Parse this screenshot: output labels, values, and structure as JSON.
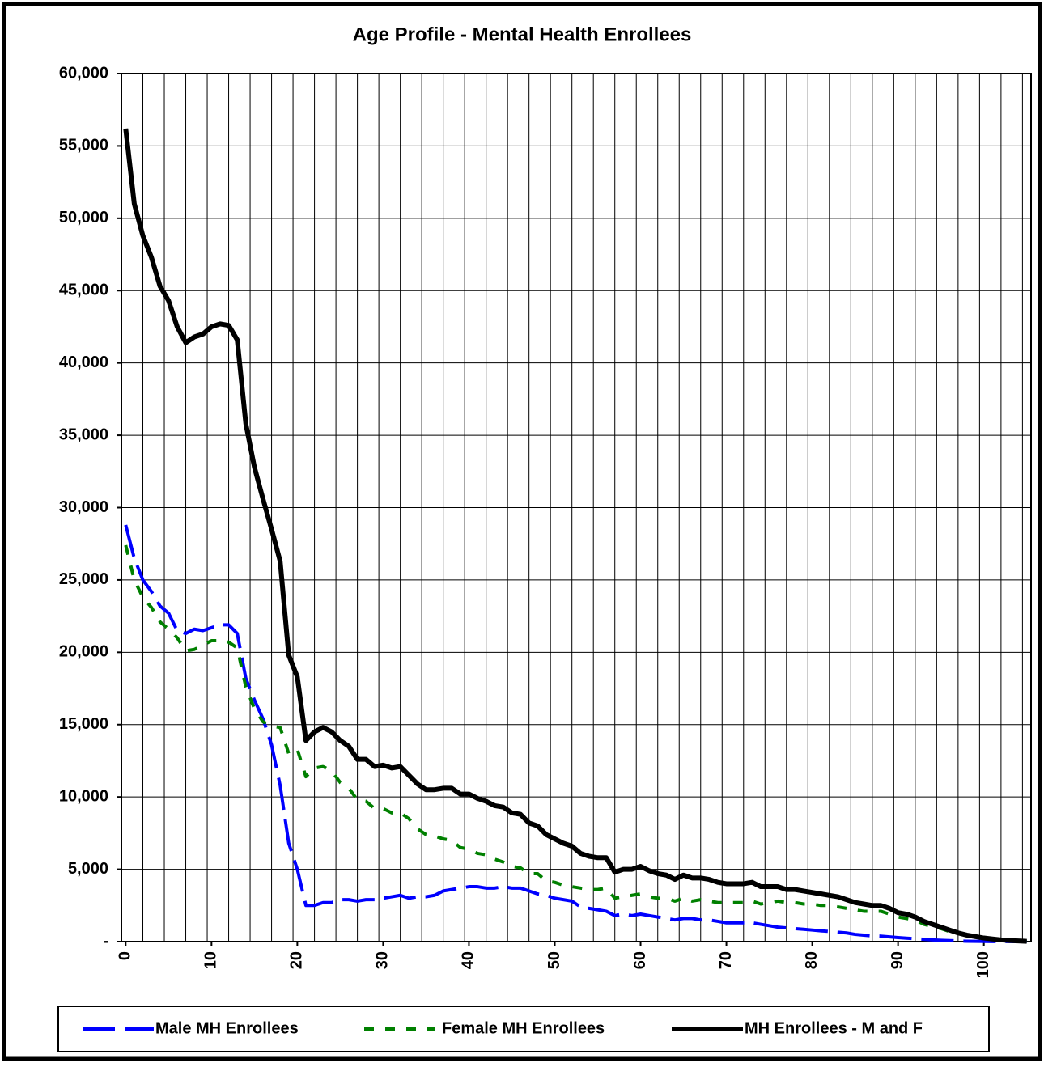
{
  "chart_data": {
    "type": "line",
    "title": "Age Profile - Mental Health Enrollees",
    "x": [
      0,
      1,
      2,
      3,
      4,
      5,
      6,
      7,
      8,
      9,
      10,
      11,
      12,
      13,
      14,
      15,
      16,
      17,
      18,
      19,
      20,
      21,
      22,
      23,
      24,
      25,
      26,
      27,
      28,
      29,
      30,
      31,
      32,
      33,
      34,
      35,
      36,
      37,
      38,
      39,
      40,
      41,
      42,
      43,
      44,
      45,
      46,
      47,
      48,
      49,
      50,
      51,
      52,
      53,
      54,
      55,
      56,
      57,
      58,
      59,
      60,
      61,
      62,
      63,
      64,
      65,
      66,
      67,
      68,
      69,
      70,
      71,
      72,
      73,
      74,
      75,
      76,
      77,
      78,
      79,
      80,
      81,
      82,
      83,
      84,
      85,
      86,
      87,
      88,
      89,
      90,
      91,
      92,
      93,
      94,
      95,
      96,
      97,
      98,
      99,
      100,
      101,
      102,
      103,
      104,
      105
    ],
    "series": [
      {
        "name": "Male MH Enrollees",
        "color": "#0000ff",
        "dash": "dashed-long",
        "values": [
          28800,
          26500,
          25000,
          24200,
          23200,
          22700,
          21500,
          21300,
          21600,
          21500,
          21700,
          21900,
          21900,
          21300,
          18200,
          16700,
          15400,
          13600,
          10800,
          6800,
          5000,
          2500,
          2500,
          2700,
          2700,
          2900,
          2900,
          2800,
          2900,
          2900,
          3000,
          3100,
          3200,
          3000,
          3100,
          3100,
          3200,
          3500,
          3600,
          3700,
          3800,
          3800,
          3700,
          3700,
          3800,
          3700,
          3700,
          3500,
          3300,
          3200,
          3000,
          2900,
          2800,
          2400,
          2300,
          2200,
          2100,
          1800,
          1900,
          1800,
          1900,
          1800,
          1700,
          1600,
          1500,
          1600,
          1600,
          1500,
          1500,
          1400,
          1300,
          1300,
          1300,
          1300,
          1200,
          1100,
          1000,
          950,
          900,
          850,
          800,
          750,
          700,
          650,
          600,
          500,
          450,
          400,
          380,
          330,
          280,
          240,
          200,
          160,
          120,
          90,
          70,
          50,
          30,
          20,
          15,
          10,
          8,
          5,
          3,
          2
        ]
      },
      {
        "name": "Female MH Enrollees",
        "color": "#008000",
        "dash": "dashed-short",
        "values": [
          27400,
          25000,
          23800,
          23100,
          22100,
          21600,
          21000,
          20100,
          20200,
          20500,
          20800,
          20800,
          20700,
          20300,
          17600,
          16100,
          15200,
          14900,
          14800,
          13000,
          13300,
          11400,
          12000,
          12100,
          11800,
          11000,
          10600,
          9800,
          9700,
          9200,
          9200,
          8900,
          8900,
          8500,
          7800,
          7400,
          7300,
          7100,
          7000,
          6500,
          6400,
          6100,
          6000,
          5700,
          5500,
          5200,
          5100,
          4700,
          4700,
          4200,
          4100,
          3900,
          3800,
          3700,
          3600,
          3600,
          3700,
          3000,
          3100,
          3200,
          3300,
          3100,
          3000,
          3000,
          2800,
          3000,
          2800,
          2900,
          2800,
          2700,
          2700,
          2700,
          2700,
          2800,
          2600,
          2700,
          2800,
          2700,
          2700,
          2600,
          2600,
          2500,
          2500,
          2400,
          2300,
          2200,
          2100,
          2100,
          2100,
          1900,
          1700,
          1600,
          1500,
          1200,
          1050,
          900,
          700,
          550,
          420,
          330,
          230,
          170,
          110,
          75,
          45,
          18
        ]
      },
      {
        "name": "MH Enrollees - M and F",
        "color": "#000000",
        "dash": "solid",
        "values": [
          56200,
          51000,
          48800,
          47300,
          45300,
          44300,
          42500,
          41400,
          41800,
          42000,
          42500,
          42700,
          42600,
          41600,
          35800,
          32800,
          30600,
          28500,
          26300,
          19800,
          18300,
          13900,
          14500,
          14800,
          14500,
          13900,
          13500,
          12600,
          12600,
          12100,
          12200,
          12000,
          12100,
          11500,
          10900,
          10500,
          10500,
          10600,
          10600,
          10200,
          10200,
          9900,
          9700,
          9400,
          9300,
          8900,
          8800,
          8200,
          8000,
          7400,
          7100,
          6800,
          6600,
          6100,
          5900,
          5800,
          5800,
          4800,
          5000,
          5000,
          5200,
          4900,
          4700,
          4600,
          4300,
          4600,
          4400,
          4400,
          4300,
          4100,
          4000,
          4000,
          4000,
          4100,
          3800,
          3800,
          3800,
          3600,
          3600,
          3500,
          3400,
          3300,
          3200,
          3100,
          2900,
          2700,
          2600,
          2500,
          2500,
          2300,
          2000,
          1900,
          1700,
          1400,
          1200,
          1000,
          800,
          600,
          450,
          350,
          250,
          180,
          120,
          80,
          50,
          20
        ]
      }
    ],
    "xlim": [
      -0.5,
      105.5
    ],
    "xticks": [
      0,
      10,
      20,
      30,
      40,
      50,
      60,
      70,
      80,
      90,
      100
    ],
    "ylim": [
      0,
      60000
    ],
    "yticks": [
      {
        "value": 0,
        "label": "-"
      },
      {
        "value": 5000,
        "label": "5,000"
      },
      {
        "value": 10000,
        "label": "10,000"
      },
      {
        "value": 15000,
        "label": "15,000"
      },
      {
        "value": 20000,
        "label": "20,000"
      },
      {
        "value": 25000,
        "label": "25,000"
      },
      {
        "value": 30000,
        "label": "30,000"
      },
      {
        "value": 35000,
        "label": "35,000"
      },
      {
        "value": 40000,
        "label": "40,000"
      },
      {
        "value": 45000,
        "label": "45,000"
      },
      {
        "value": 50000,
        "label": "50,000"
      },
      {
        "value": 55000,
        "label": "55,000"
      },
      {
        "value": 60000,
        "label": "60,000"
      }
    ],
    "grid": true,
    "legend": "bottom"
  }
}
